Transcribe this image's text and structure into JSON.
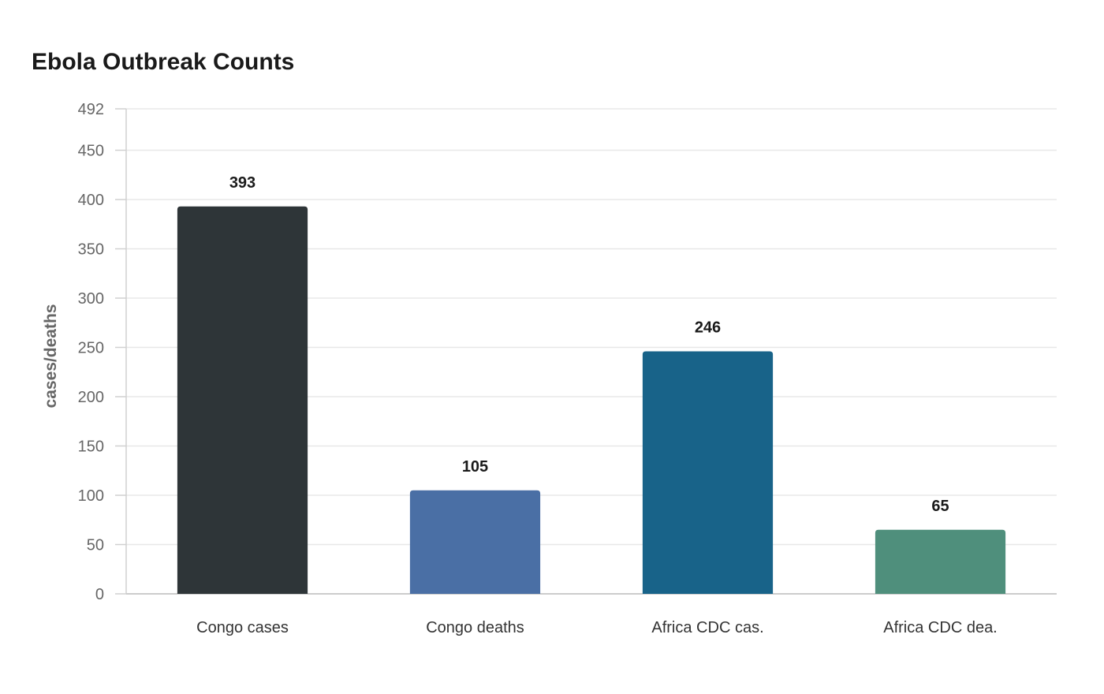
{
  "chart_data": {
    "type": "bar",
    "title": "Ebola Outbreak Counts",
    "xlabel": "",
    "ylabel": "cases/deaths",
    "categories": [
      "Congo cases",
      "Congo deaths",
      "Africa CDC cas.",
      "Africa CDC dea."
    ],
    "values": [
      393,
      105,
      246,
      65
    ],
    "colors": [
      "#2e3538",
      "#4a6fa5",
      "#186389",
      "#4f8f7c"
    ],
    "ylim": [
      0,
      492
    ],
    "yticks": [
      0,
      50,
      100,
      150,
      200,
      250,
      300,
      350,
      400,
      450,
      492
    ],
    "grid": true,
    "legend": "none"
  }
}
